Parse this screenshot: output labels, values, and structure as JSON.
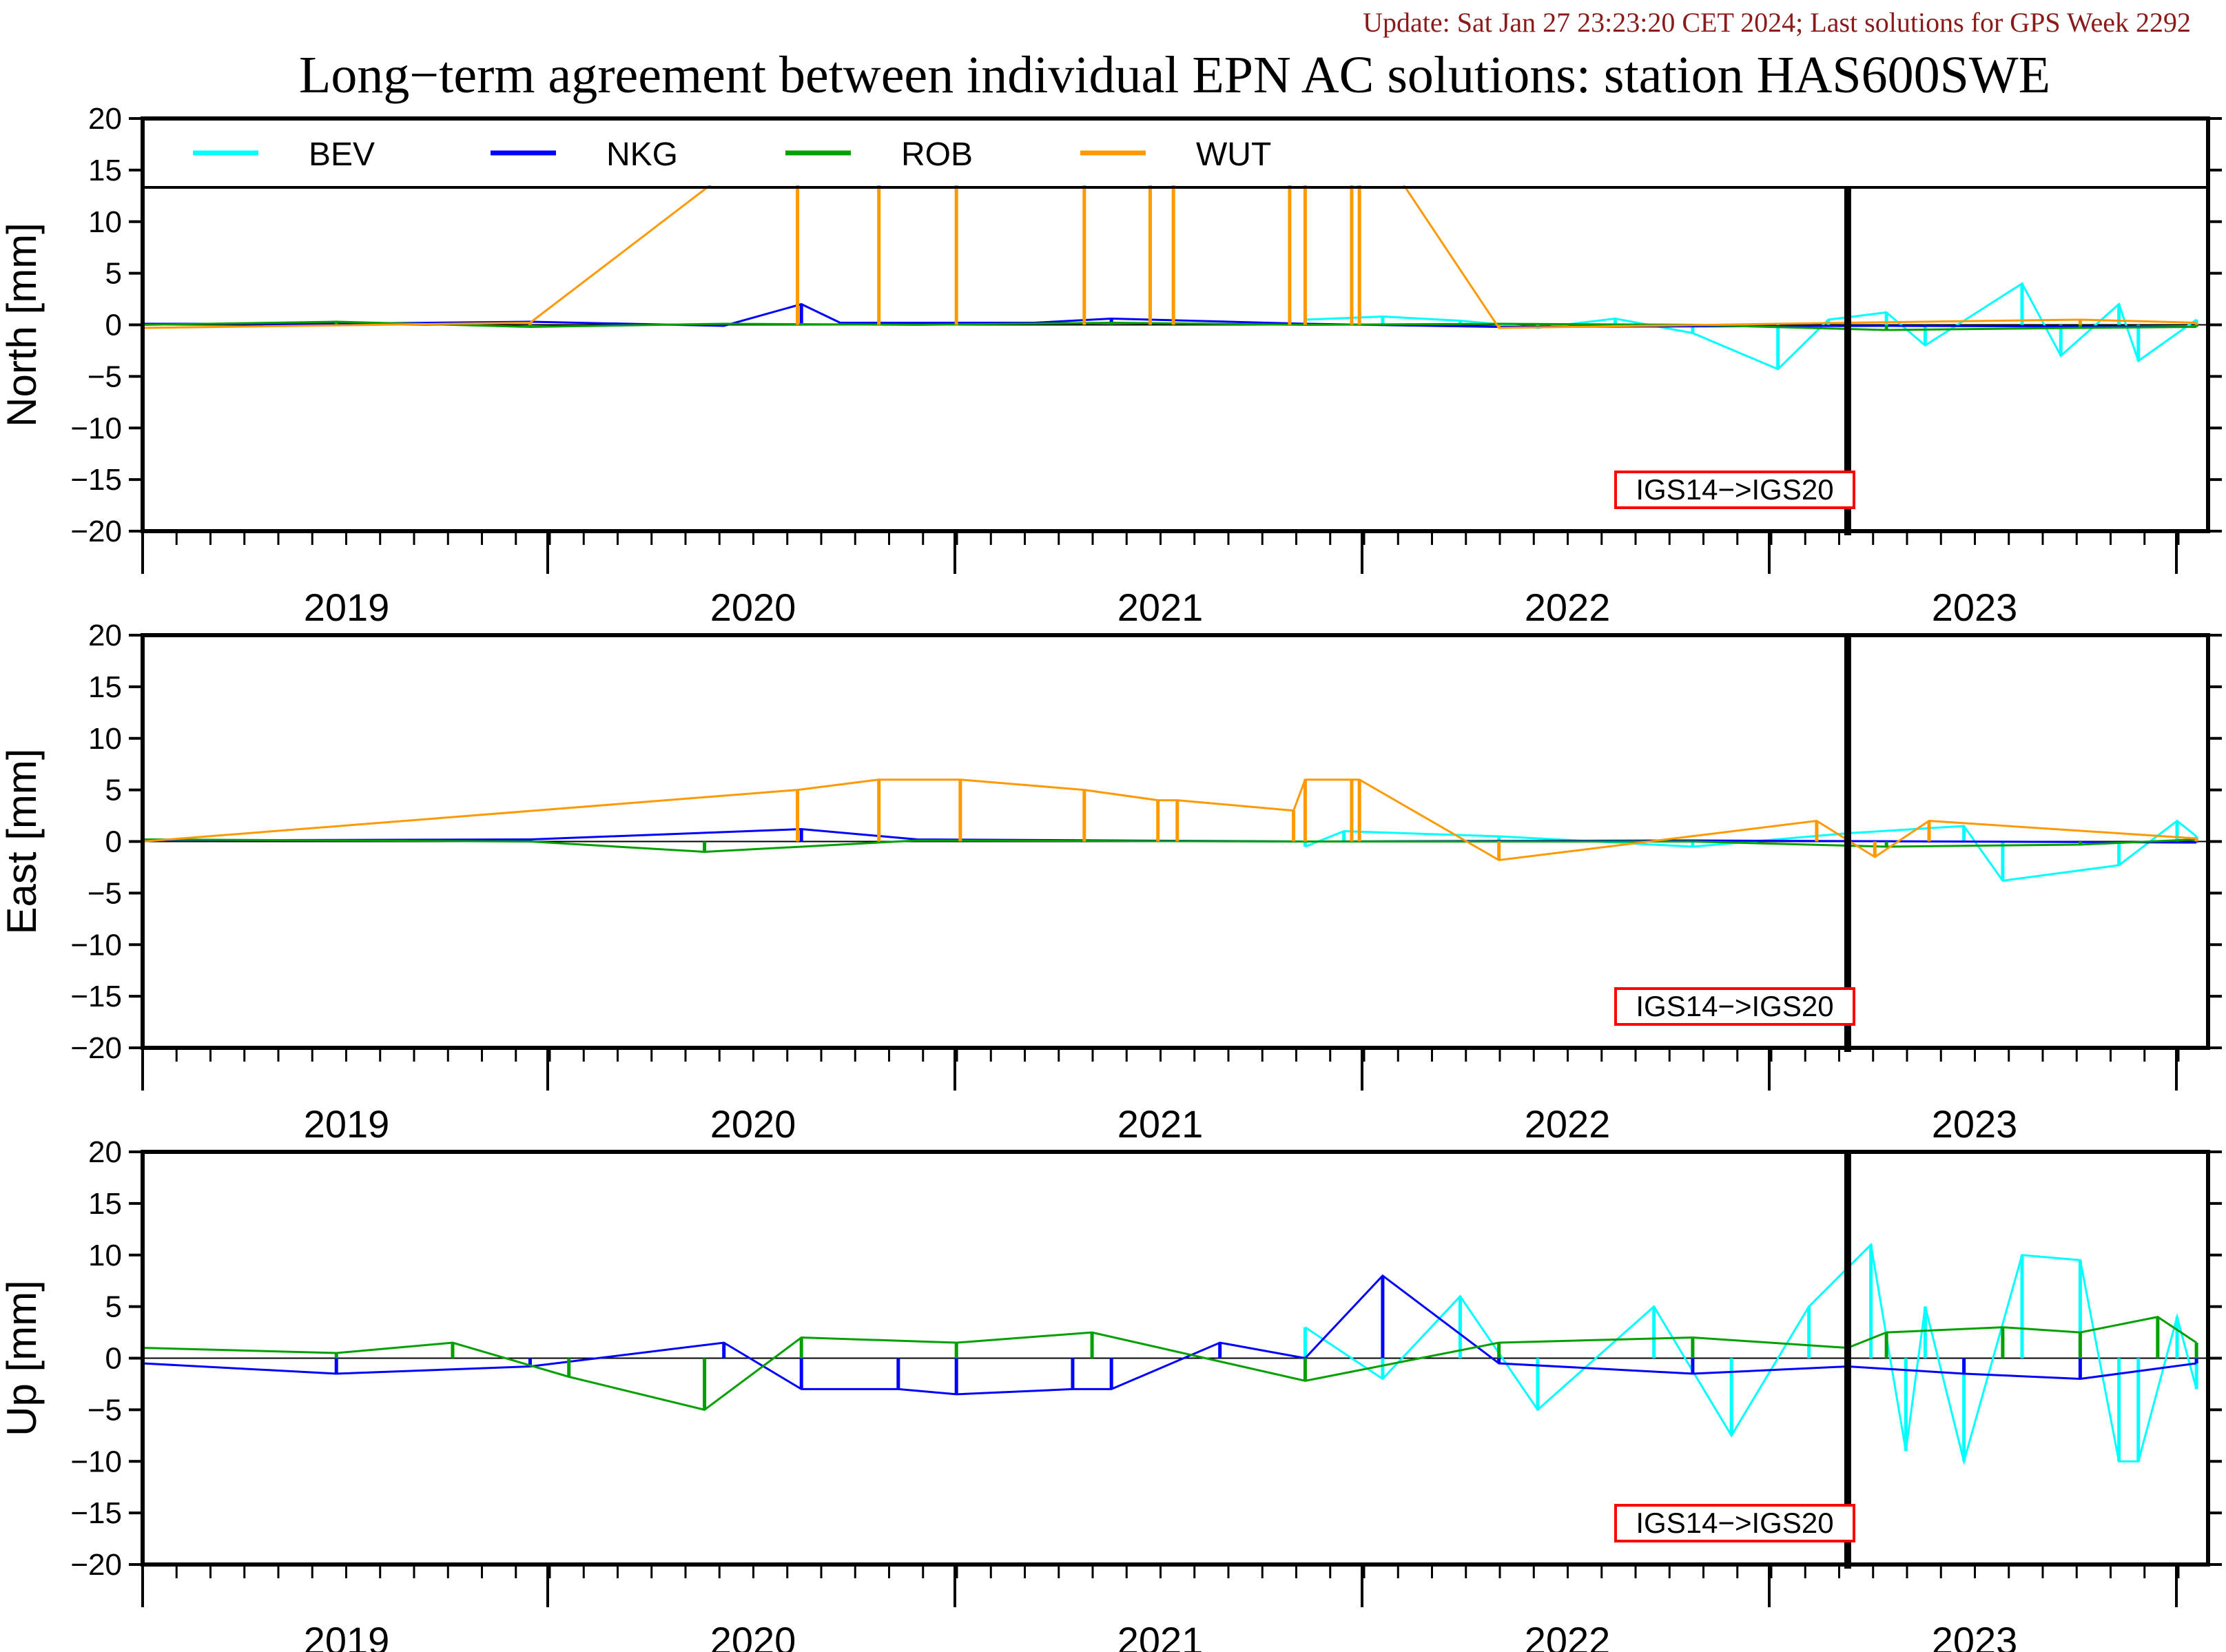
{
  "update_text": "Update: Sat Jan 27 23:23:20 CET 2024; Last solutions for GPS Week 2292",
  "title": "Long−term agreement between individual EPN AC solutions: station HAS600SWE",
  "colors": {
    "BEV": "#00ffff",
    "NKG": "#0000ff",
    "ROB": "#00a000",
    "WUT": "#ff9900",
    "update_text": "#8b1a1a",
    "marker_box": "#ff0000"
  },
  "legend": [
    {
      "name": "BEV",
      "color": "#00ffff"
    },
    {
      "name": "NKG",
      "color": "#0000ff"
    },
    {
      "name": "ROB",
      "color": "#00a000"
    },
    {
      "name": "WUT",
      "color": "#ff9900"
    }
  ],
  "marker_label": "IGS14−>IGS20",
  "chart_data": [
    {
      "type": "line",
      "ylabel": "North [mm]",
      "ylim": [
        -20,
        20
      ],
      "yticks": [
        20,
        15,
        10,
        5,
        0,
        -5,
        -10,
        -15,
        -20
      ],
      "xlim": [
        2018.5,
        2023.83
      ],
      "year_labels": [
        "2019",
        "2020",
        "2021",
        "2022",
        "2023"
      ],
      "frame_change_at": 2022.9,
      "series": [
        {
          "name": "BEV",
          "points": [
            [
              2021.5,
              0.5
            ],
            [
              2021.7,
              0.8
            ],
            [
              2021.9,
              0.4
            ],
            [
              2022.1,
              -0.3
            ],
            [
              2022.3,
              0.6
            ],
            [
              2022.5,
              -0.8
            ],
            [
              2022.72,
              -4.3
            ],
            [
              2022.85,
              0.5
            ],
            [
              2023.0,
              1.2
            ],
            [
              2023.1,
              -2.0
            ],
            [
              2023.35,
              4.0
            ],
            [
              2023.45,
              -3.0
            ],
            [
              2023.6,
              2.0
            ],
            [
              2023.65,
              -3.5
            ],
            [
              2023.8,
              0.5
            ]
          ]
        },
        {
          "name": "NKG",
          "points": [
            [
              2018.5,
              0.1
            ],
            [
              2019.0,
              0.1
            ],
            [
              2019.5,
              0.3
            ],
            [
              2020.0,
              -0.1
            ],
            [
              2020.2,
              2.0
            ],
            [
              2020.3,
              0.2
            ],
            [
              2020.8,
              0.2
            ],
            [
              2021.0,
              0.6
            ],
            [
              2021.5,
              0.1
            ],
            [
              2022.0,
              -0.2
            ],
            [
              2023.0,
              -0.1
            ],
            [
              2023.8,
              -0.2
            ]
          ]
        },
        {
          "name": "ROB",
          "points": [
            [
              2018.5,
              0.0
            ],
            [
              2019.0,
              0.3
            ],
            [
              2019.5,
              -0.2
            ],
            [
              2020.0,
              0.1
            ],
            [
              2020.5,
              0.0
            ],
            [
              2021.0,
              0.2
            ],
            [
              2021.5,
              0.0
            ],
            [
              2022.0,
              0.1
            ],
            [
              2022.5,
              0.0
            ],
            [
              2023.0,
              -0.5
            ],
            [
              2023.5,
              -0.3
            ],
            [
              2023.8,
              -0.2
            ]
          ]
        },
        {
          "name": "WUT",
          "points": [
            [
              2018.5,
              -0.3
            ],
            [
              2019.5,
              0.2
            ],
            [
              2020.19,
              20
            ],
            [
              2020.4,
              20
            ],
            [
              2020.6,
              20
            ],
            [
              2020.93,
              20
            ],
            [
              2021.1,
              20
            ],
            [
              2021.16,
              20
            ],
            [
              2021.46,
              20
            ],
            [
              2021.5,
              20
            ],
            [
              2021.62,
              20
            ],
            [
              2021.64,
              20
            ],
            [
              2022.0,
              -0.3
            ],
            [
              2022.9,
              0.2
            ],
            [
              2023.5,
              0.5
            ],
            [
              2023.8,
              0.2
            ]
          ]
        }
      ]
    },
    {
      "type": "line",
      "ylabel": "East [mm]",
      "ylim": [
        -20,
        20
      ],
      "yticks": [
        20,
        15,
        10,
        5,
        0,
        -5,
        -10,
        -15,
        -20
      ],
      "xlim": [
        2018.5,
        2023.83
      ],
      "year_labels": [
        "2019",
        "2020",
        "2021",
        "2022",
        "2023"
      ],
      "frame_change_at": 2022.9,
      "series": [
        {
          "name": "BEV",
          "points": [
            [
              2021.5,
              -0.5
            ],
            [
              2021.6,
              1.0
            ],
            [
              2022.0,
              0.5
            ],
            [
              2022.5,
              -0.5
            ],
            [
              2022.9,
              0.8
            ],
            [
              2023.2,
              1.5
            ],
            [
              2023.3,
              -3.8
            ],
            [
              2023.6,
              -2.3
            ],
            [
              2023.75,
              2.0
            ],
            [
              2023.8,
              0.5
            ]
          ]
        },
        {
          "name": "NKG",
          "points": [
            [
              2018.5,
              0.1
            ],
            [
              2019.5,
              0.2
            ],
            [
              2020.2,
              1.2
            ],
            [
              2020.5,
              0.2
            ],
            [
              2021.5,
              0.0
            ],
            [
              2022.5,
              0.1
            ],
            [
              2023.8,
              -0.1
            ]
          ]
        },
        {
          "name": "ROB",
          "points": [
            [
              2018.5,
              0.2
            ],
            [
              2019.5,
              0.0
            ],
            [
              2019.95,
              -1.0
            ],
            [
              2020.5,
              0.1
            ],
            [
              2021.5,
              0.0
            ],
            [
              2022.5,
              0.0
            ],
            [
              2023.0,
              -0.5
            ],
            [
              2023.5,
              -0.3
            ],
            [
              2023.8,
              0.2
            ]
          ]
        },
        {
          "name": "WUT",
          "points": [
            [
              2018.5,
              0.0
            ],
            [
              2020.19,
              5.0
            ],
            [
              2020.4,
              6.0
            ],
            [
              2020.61,
              6.0
            ],
            [
              2020.93,
              5.0
            ],
            [
              2021.12,
              4.0
            ],
            [
              2021.17,
              4.0
            ],
            [
              2021.47,
              3.0
            ],
            [
              2021.5,
              6.0
            ],
            [
              2021.62,
              6.0
            ],
            [
              2021.64,
              6.0
            ],
            [
              2022.0,
              -1.8
            ],
            [
              2022.82,
              2.0
            ],
            [
              2022.97,
              -1.5
            ],
            [
              2023.11,
              2.0
            ],
            [
              2023.8,
              0.3
            ]
          ]
        }
      ]
    },
    {
      "type": "line",
      "ylabel": "Up [mm]",
      "ylim": [
        -20,
        20
      ],
      "yticks": [
        20,
        15,
        10,
        5,
        0,
        -5,
        -10,
        -15,
        -20
      ],
      "xlim": [
        2018.5,
        2023.83
      ],
      "year_labels": [
        "2019",
        "2020",
        "2021",
        "2022",
        "2023"
      ],
      "frame_change_at": 2022.9,
      "series": [
        {
          "name": "BEV",
          "points": [
            [
              2021.5,
              3.0
            ],
            [
              2021.7,
              -2.0
            ],
            [
              2021.9,
              6.0
            ],
            [
              2022.1,
              -5.0
            ],
            [
              2022.4,
              5.0
            ],
            [
              2022.6,
              -7.5
            ],
            [
              2022.8,
              5.0
            ],
            [
              2022.96,
              11.0
            ],
            [
              2023.05,
              -9.0
            ],
            [
              2023.1,
              5.0
            ],
            [
              2023.2,
              -10.0
            ],
            [
              2023.35,
              10.0
            ],
            [
              2023.5,
              9.5
            ],
            [
              2023.6,
              -10.0
            ],
            [
              2023.65,
              -10.0
            ],
            [
              2023.75,
              4.0
            ],
            [
              2023.8,
              -3.0
            ]
          ]
        },
        {
          "name": "NKG",
          "points": [
            [
              2018.5,
              -0.5
            ],
            [
              2019.0,
              -1.5
            ],
            [
              2019.5,
              -0.8
            ],
            [
              2020.0,
              1.5
            ],
            [
              2020.2,
              -3.0
            ],
            [
              2020.45,
              -3.0
            ],
            [
              2020.6,
              -3.5
            ],
            [
              2020.9,
              -3.0
            ],
            [
              2021.0,
              -3.0
            ],
            [
              2021.28,
              1.5
            ],
            [
              2021.5,
              0.0
            ],
            [
              2021.7,
              8.0
            ],
            [
              2022.0,
              -0.5
            ],
            [
              2022.5,
              -1.5
            ],
            [
              2022.9,
              -0.8
            ],
            [
              2023.2,
              -1.5
            ],
            [
              2023.5,
              -2.0
            ],
            [
              2023.8,
              -0.5
            ]
          ]
        },
        {
          "name": "ROB",
          "points": [
            [
              2018.5,
              1.0
            ],
            [
              2019.0,
              0.5
            ],
            [
              2019.3,
              1.5
            ],
            [
              2019.6,
              -1.8
            ],
            [
              2019.95,
              -5.0
            ],
            [
              2020.2,
              2.0
            ],
            [
              2020.6,
              1.5
            ],
            [
              2020.95,
              2.5
            ],
            [
              2021.5,
              -2.2
            ],
            [
              2022.0,
              1.5
            ],
            [
              2022.5,
              2.0
            ],
            [
              2022.9,
              1.0
            ],
            [
              2023.0,
              2.5
            ],
            [
              2023.3,
              3.0
            ],
            [
              2023.5,
              2.5
            ],
            [
              2023.7,
              4.0
            ],
            [
              2023.8,
              1.5
            ]
          ]
        }
      ]
    }
  ]
}
